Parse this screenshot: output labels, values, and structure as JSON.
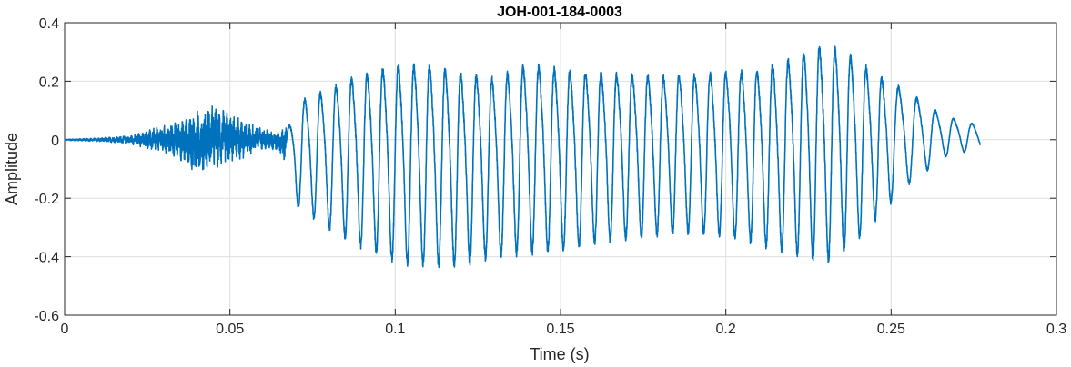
{
  "chart_data": {
    "type": "line",
    "title": "JOH-001-184-0003",
    "xlabel": "Time (s)",
    "ylabel": "Amplitude",
    "xlim": [
      0,
      0.3
    ],
    "ylim": [
      -0.6,
      0.4
    ],
    "grid": true,
    "x_ticks": [
      0,
      0.05,
      0.1,
      0.15,
      0.2,
      0.25,
      0.3
    ],
    "x_tick_labels": [
      "0",
      "0.05",
      "0.1",
      "0.15",
      "0.2",
      "0.25",
      "0.3"
    ],
    "y_ticks": [
      -0.6,
      -0.4,
      -0.2,
      0,
      0.2,
      0.4
    ],
    "y_tick_labels": [
      "-0.6",
      "-0.4",
      "-0.2",
      "0",
      "0.2",
      "0.4"
    ],
    "series": [
      {
        "color": "#0072BD",
        "signal_duration_s": 0.277,
        "envelope": {
          "t": [
            0,
            0.01,
            0.02,
            0.03,
            0.035,
            0.04,
            0.045,
            0.05,
            0.055,
            0.06,
            0.065,
            0.068,
            0.07,
            0.072,
            0.075,
            0.08,
            0.085,
            0.09,
            0.095,
            0.1,
            0.11,
            0.12,
            0.13,
            0.14,
            0.15,
            0.16,
            0.17,
            0.18,
            0.19,
            0.2,
            0.21,
            0.22,
            0.225,
            0.23,
            0.235,
            0.24,
            0.245,
            0.25,
            0.255,
            0.26,
            0.265,
            0.27,
            0.275,
            0.277
          ],
          "upper": [
            0.002,
            0.006,
            0.014,
            0.05,
            0.065,
            0.1,
            0.12,
            0.09,
            0.06,
            0.04,
            0.03,
            0.06,
            0.11,
            0.16,
            0.18,
            0.2,
            0.24,
            0.26,
            0.28,
            0.3,
            0.3,
            0.27,
            0.25,
            0.3,
            0.28,
            0.27,
            0.26,
            0.25,
            0.26,
            0.27,
            0.28,
            0.32,
            0.35,
            0.37,
            0.35,
            0.31,
            0.26,
            0.22,
            0.19,
            0.14,
            0.1,
            0.075,
            0.06,
            0.04
          ],
          "lower": [
            -0.002,
            -0.006,
            -0.014,
            -0.05,
            -0.07,
            -0.12,
            -0.1,
            -0.08,
            -0.06,
            -0.035,
            -0.04,
            -0.12,
            -0.22,
            -0.24,
            -0.26,
            -0.3,
            -0.33,
            -0.36,
            -0.38,
            -0.41,
            -0.42,
            -0.42,
            -0.39,
            -0.38,
            -0.37,
            -0.35,
            -0.33,
            -0.32,
            -0.31,
            -0.32,
            -0.35,
            -0.38,
            -0.4,
            -0.41,
            -0.38,
            -0.33,
            -0.27,
            -0.21,
            -0.15,
            -0.11,
            -0.06,
            -0.045,
            -0.035,
            -0.03
          ]
        }
      }
    ]
  }
}
